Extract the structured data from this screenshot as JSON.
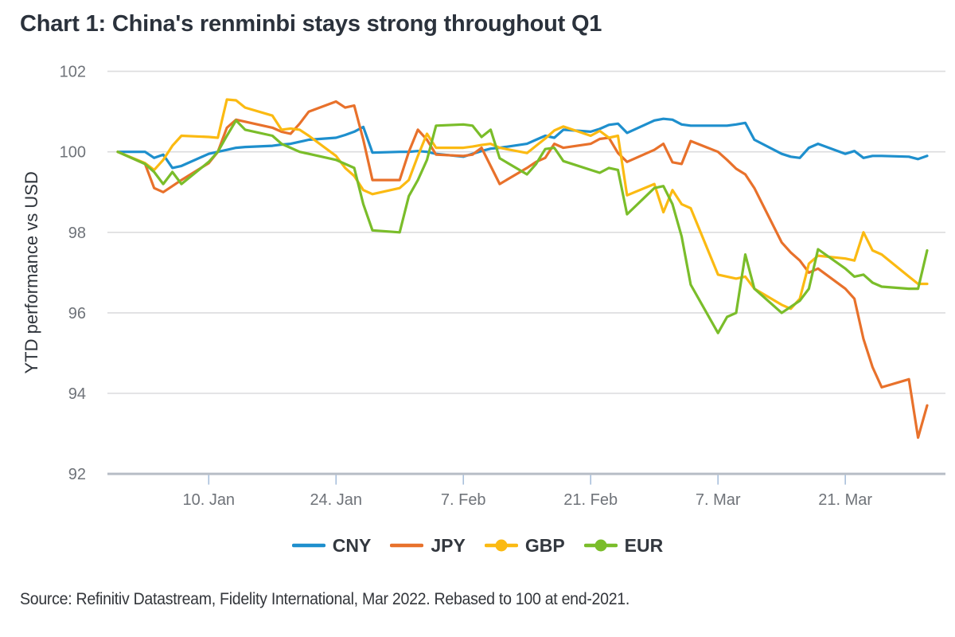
{
  "title": "Chart 1: China's renminbi stays strong throughout Q1",
  "source": "Source: Refinitiv Datastream, Fidelity International, Mar 2022. Rebased to 100 at end-2021.",
  "chart_data": {
    "type": "line",
    "title": "Chart 1: China's renminbi stays strong throughout Q1",
    "xlabel": "",
    "ylabel": "YTD performance vs USD",
    "ylim": [
      92,
      102
    ],
    "yticks": [
      92,
      94,
      96,
      98,
      100,
      102
    ],
    "grid": true,
    "legend_position": "bottom",
    "x_axis_note": "daily weekday closes, Dec 31 2021 (rebased 100) to Mar 30 2022; x values are calendar-day offsets from Dec 31",
    "xticks": [
      {
        "label": "10. Jan",
        "day": 10
      },
      {
        "label": "24. Jan",
        "day": 24
      },
      {
        "label": "7. Feb",
        "day": 38
      },
      {
        "label": "21. Feb",
        "day": 52
      },
      {
        "label": "7. Mar",
        "day": 66
      },
      {
        "label": "21. Mar",
        "day": 80
      }
    ],
    "x_day_offsets": [
      0,
      3,
      4,
      5,
      6,
      7,
      10,
      11,
      12,
      13,
      14,
      17,
      18,
      19,
      20,
      21,
      24,
      25,
      26,
      27,
      28,
      31,
      32,
      33,
      34,
      35,
      38,
      39,
      40,
      41,
      42,
      45,
      46,
      47,
      48,
      49,
      52,
      53,
      54,
      55,
      56,
      59,
      60,
      61,
      62,
      63,
      66,
      67,
      68,
      69,
      70,
      73,
      74,
      75,
      76,
      77,
      80,
      81,
      82,
      83,
      84,
      87,
      88,
      89
    ],
    "series": [
      {
        "name": "CNY",
        "color": "#1e8fcd",
        "marker": false,
        "values": [
          100,
          100,
          99.85,
          99.93,
          99.6,
          99.65,
          99.95,
          100.0,
          100.05,
          100.1,
          100.12,
          100.15,
          100.18,
          100.2,
          100.25,
          100.3,
          100.35,
          100.42,
          100.5,
          100.62,
          99.98,
          100.0,
          100.0,
          100.02,
          100.0,
          99.95,
          99.88,
          99.95,
          100.02,
          100.08,
          100.1,
          100.2,
          100.3,
          100.4,
          100.35,
          100.55,
          100.5,
          100.57,
          100.67,
          100.7,
          100.47,
          100.78,
          100.82,
          100.8,
          100.68,
          100.65,
          100.65,
          100.65,
          100.68,
          100.72,
          100.3,
          99.95,
          99.88,
          99.85,
          100.1,
          100.2,
          99.95,
          100.02,
          99.85,
          99.9,
          99.9,
          99.88,
          99.82,
          99.9
        ]
      },
      {
        "name": "JPY",
        "color": "#e8712b",
        "marker": false,
        "values": [
          100,
          99.7,
          99.1,
          99.0,
          99.15,
          99.3,
          99.72,
          100.0,
          100.6,
          100.8,
          100.75,
          100.6,
          100.5,
          100.45,
          100.7,
          101.0,
          101.25,
          101.1,
          101.15,
          100.3,
          99.3,
          99.3,
          100.0,
          100.55,
          100.3,
          99.93,
          99.9,
          99.93,
          100.1,
          99.65,
          99.2,
          99.6,
          99.75,
          99.85,
          100.2,
          100.1,
          100.2,
          100.32,
          100.35,
          99.97,
          99.75,
          100.05,
          100.2,
          99.74,
          99.7,
          100.27,
          100.0,
          99.8,
          99.58,
          99.44,
          99.1,
          97.75,
          97.5,
          97.3,
          97.0,
          97.1,
          96.6,
          96.35,
          95.35,
          94.65,
          94.15,
          94.35,
          92.9,
          93.7
        ]
      },
      {
        "name": "GBP",
        "color": "#fbba12",
        "marker": true,
        "values": [
          100,
          99.72,
          99.55,
          99.8,
          100.15,
          100.4,
          100.37,
          100.35,
          101.3,
          101.28,
          101.1,
          100.9,
          100.55,
          100.58,
          100.55,
          100.4,
          99.9,
          99.6,
          99.4,
          99.05,
          98.95,
          99.1,
          99.3,
          99.9,
          100.45,
          100.1,
          100.1,
          100.13,
          100.17,
          100.2,
          100.1,
          99.97,
          100.15,
          100.33,
          100.53,
          100.63,
          100.4,
          100.52,
          100.35,
          100.4,
          98.92,
          99.2,
          98.5,
          99.05,
          98.7,
          98.6,
          96.95,
          96.9,
          96.85,
          96.9,
          96.6,
          96.2,
          96.1,
          96.35,
          97.22,
          97.42,
          97.35,
          97.3,
          98.0,
          97.55,
          97.45,
          96.9,
          96.72,
          96.72
        ]
      },
      {
        "name": "EUR",
        "color": "#7abd2a",
        "marker": true,
        "values": [
          100,
          99.7,
          99.5,
          99.2,
          99.5,
          99.2,
          99.75,
          100.0,
          100.4,
          100.78,
          100.55,
          100.4,
          100.2,
          100.1,
          100.0,
          99.95,
          99.8,
          99.7,
          99.6,
          98.7,
          98.05,
          98.0,
          98.9,
          99.3,
          99.8,
          100.65,
          100.68,
          100.65,
          100.37,
          100.55,
          99.84,
          99.44,
          99.7,
          100.07,
          100.1,
          99.77,
          99.55,
          99.48,
          99.6,
          99.55,
          98.45,
          99.1,
          99.15,
          98.7,
          97.9,
          96.7,
          95.5,
          95.9,
          96.0,
          97.45,
          96.6,
          96.0,
          96.15,
          96.3,
          96.6,
          97.58,
          97.1,
          96.9,
          96.95,
          96.75,
          96.65,
          96.6,
          96.6,
          97.55
        ]
      }
    ]
  },
  "colors": {
    "cny": "#1e8fcd",
    "jpy": "#e8712b",
    "gbp": "#fbba12",
    "eur": "#7abd2a",
    "axis_text": "#6f7379",
    "title_text": "#2b323c"
  }
}
